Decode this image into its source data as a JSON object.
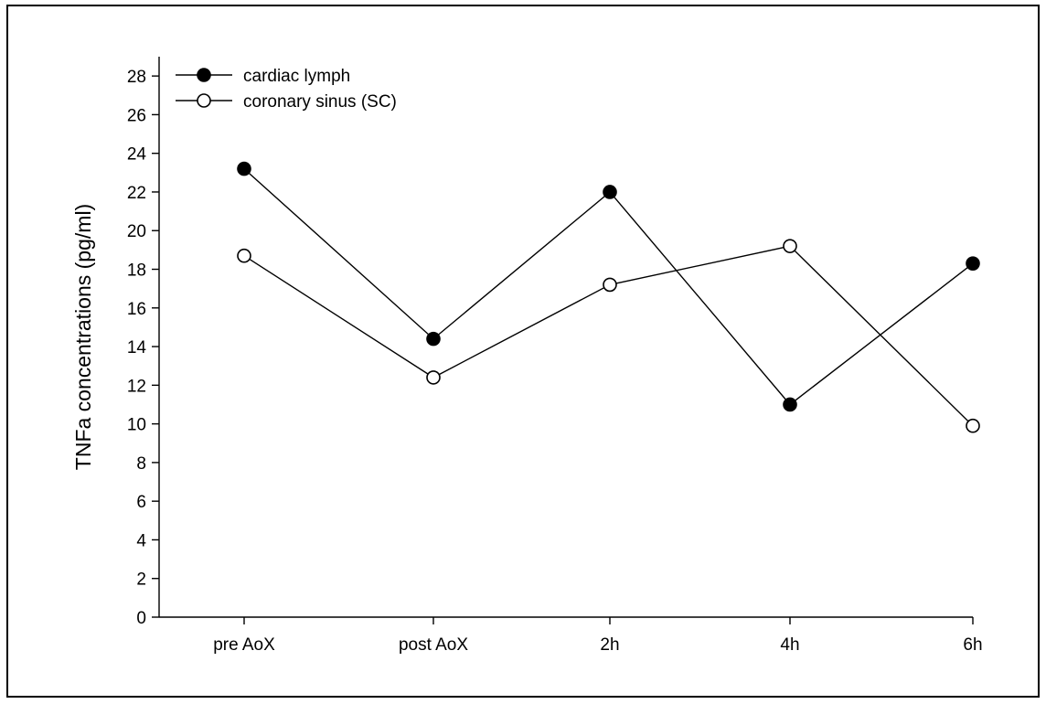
{
  "chart_data": {
    "type": "line",
    "title": "",
    "xlabel": "",
    "ylabel": "TNFa concentrations (pg/ml)",
    "categories": [
      "pre AoX",
      "post AoX",
      "2h",
      "4h",
      "6h"
    ],
    "ylim": [
      0,
      29
    ],
    "yticks": [
      0,
      2,
      4,
      6,
      8,
      10,
      12,
      14,
      16,
      18,
      20,
      22,
      24,
      26,
      28
    ],
    "grid": false,
    "legend_position": "top-left",
    "series": [
      {
        "name": "cardiac lymph",
        "marker": "filled-circle",
        "color": "#000000",
        "values": [
          23.2,
          14.4,
          22.0,
          11.0,
          18.3
        ]
      },
      {
        "name": "coronary sinus (SC)",
        "marker": "open-circle",
        "color": "#000000",
        "values": [
          18.7,
          12.4,
          17.2,
          19.2,
          9.9
        ]
      }
    ]
  }
}
